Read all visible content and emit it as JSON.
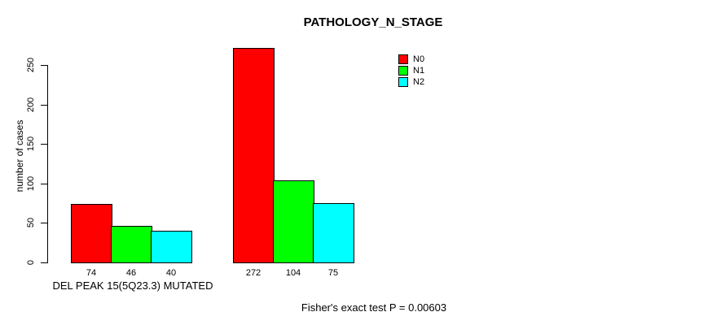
{
  "chart_data": {
    "type": "bar",
    "title": "PATHOLOGY_N_STAGE",
    "ylabel": "number of cases",
    "xlabel": "",
    "ylim": [
      0,
      250
    ],
    "yticks": [
      0,
      50,
      100,
      150,
      200,
      250
    ],
    "grid": false,
    "categories": [
      "DEL PEAK 15(5Q23.3) MUTATED",
      ""
    ],
    "series": [
      {
        "name": "N0",
        "color": "#ff0000",
        "values": [
          74,
          272
        ]
      },
      {
        "name": "N1",
        "color": "#00ff00",
        "values": [
          46,
          104
        ]
      },
      {
        "name": "N2",
        "color": "#00ffff",
        "values": [
          40,
          75
        ]
      }
    ],
    "legend": {
      "position": "top-right",
      "entries": [
        "N0",
        "N1",
        "N2"
      ]
    },
    "annotation": "Fisher's exact test P = 0.00603"
  }
}
